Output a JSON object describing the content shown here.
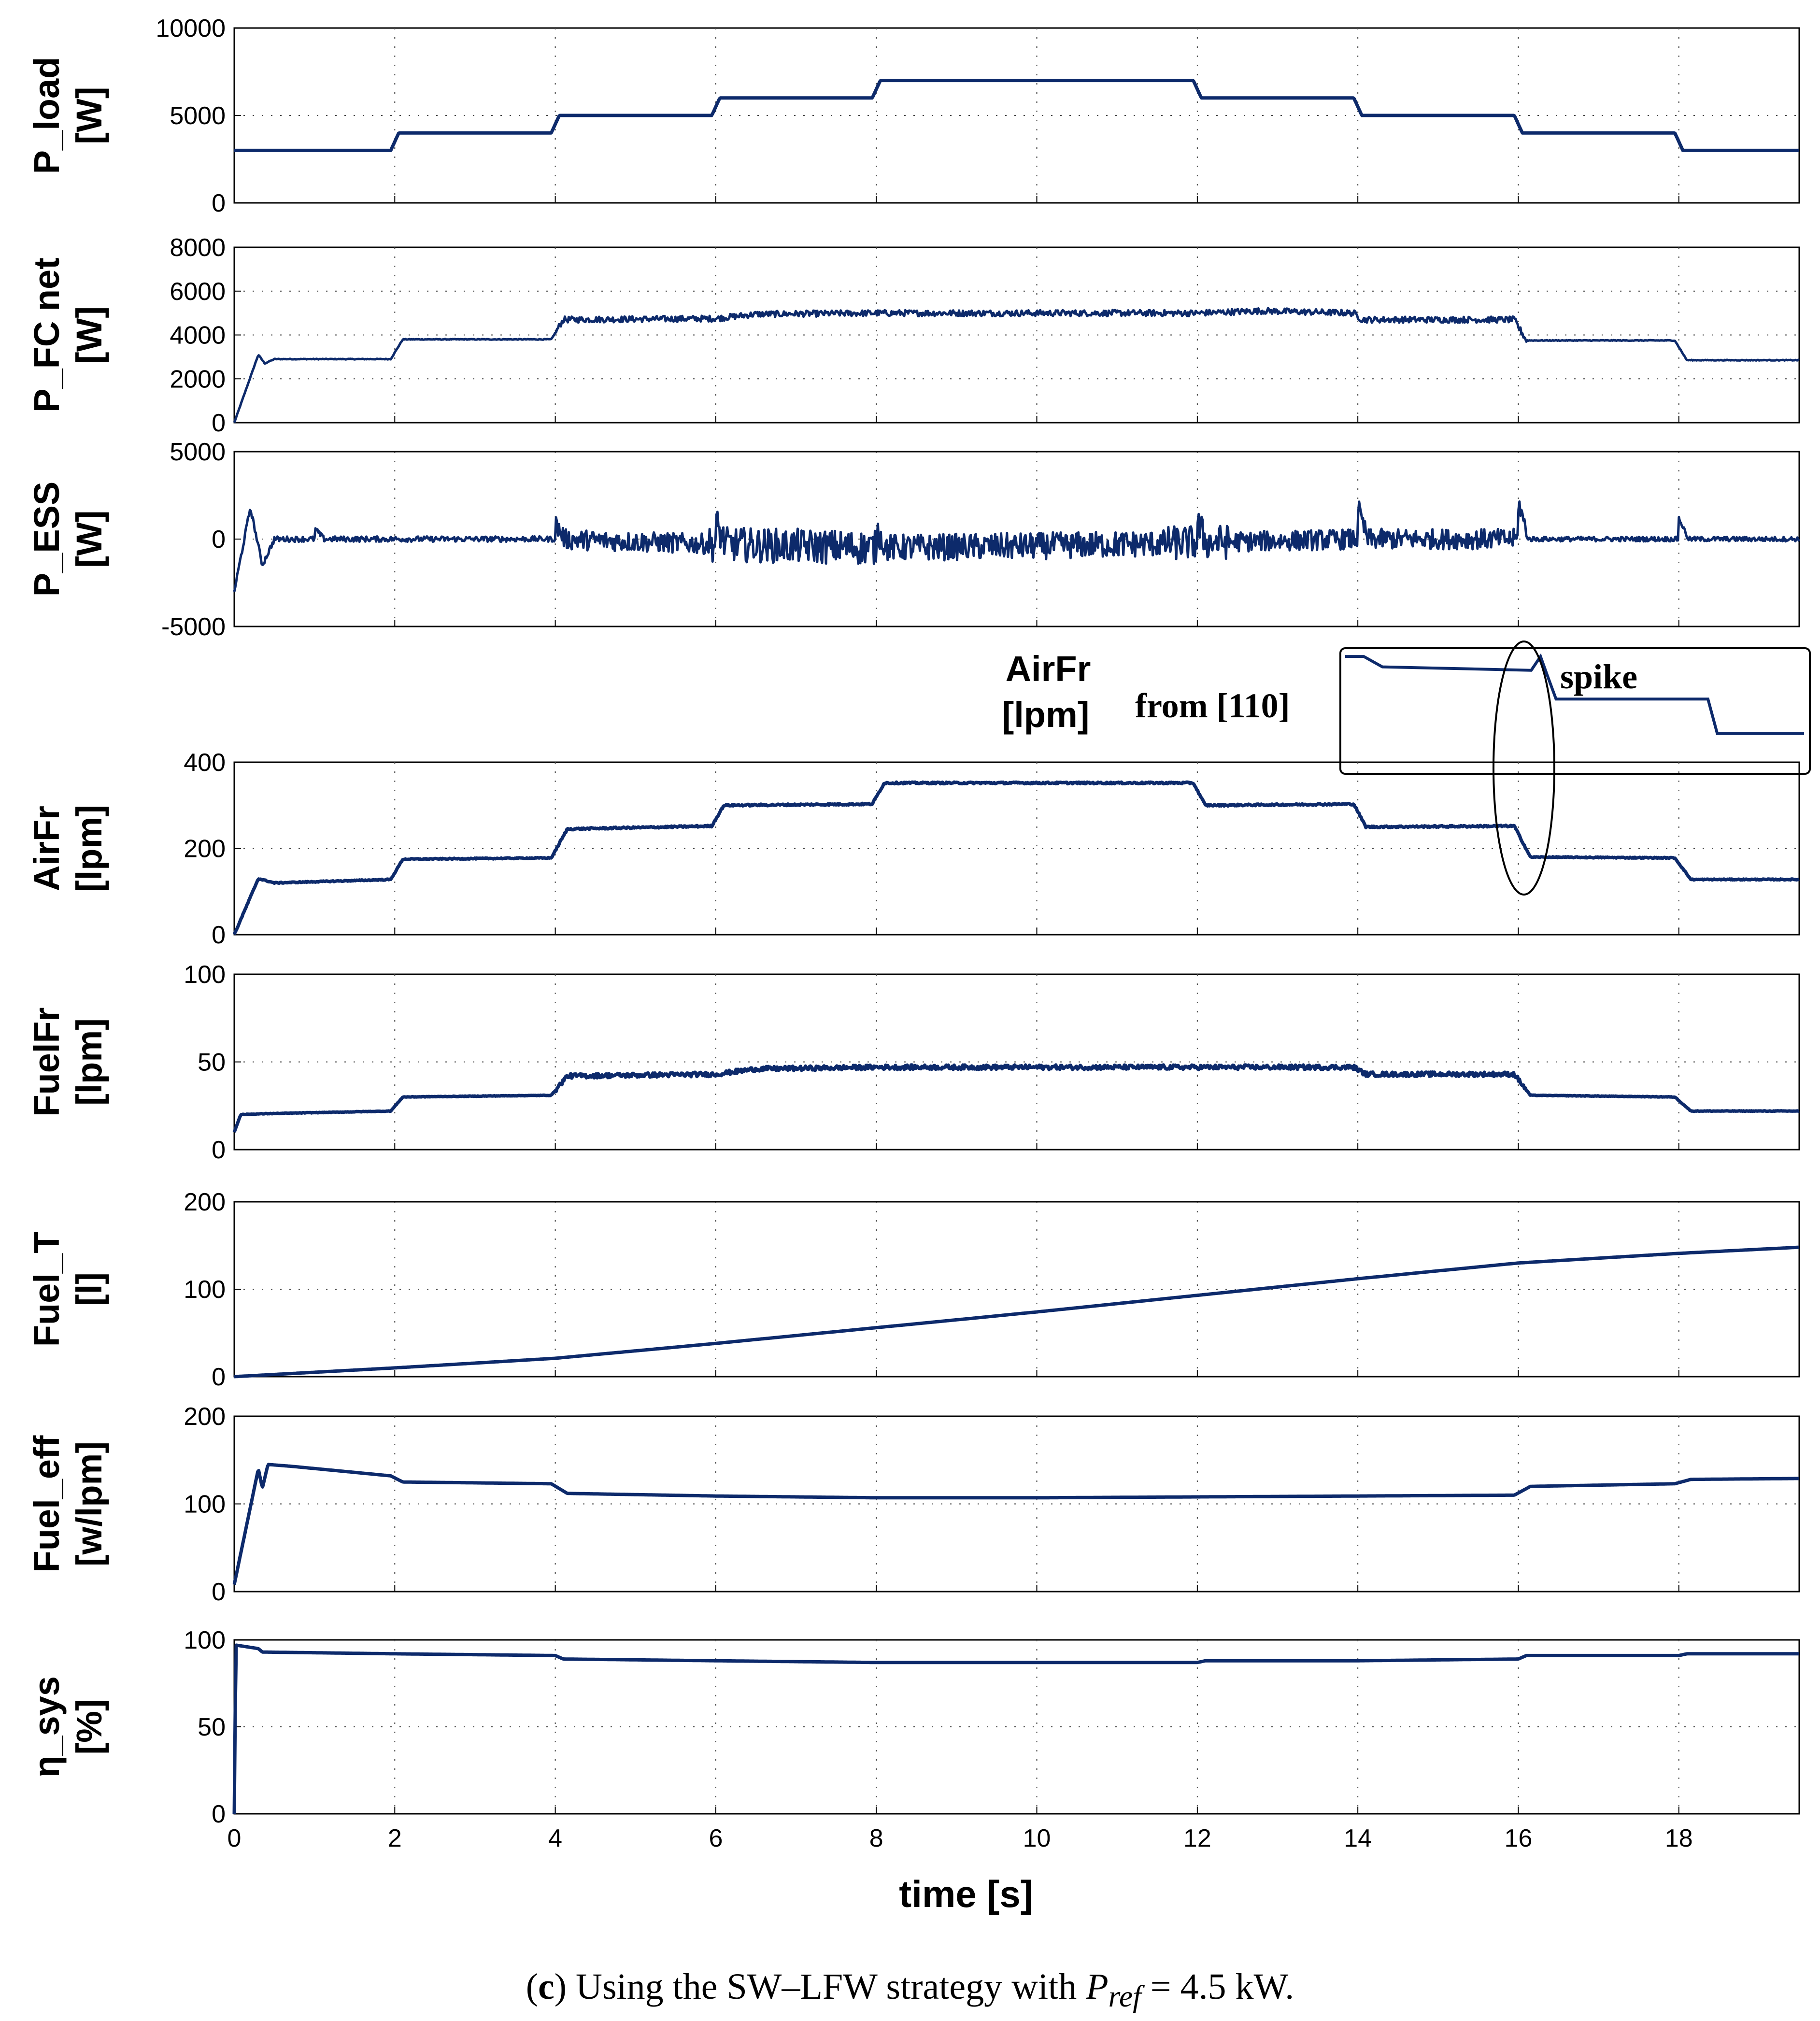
{
  "chart_data": {
    "type": "line",
    "layout": "stacked-subplots",
    "xlabel": "time [s]",
    "xlim": [
      0,
      19.5
    ],
    "xticks": [
      0,
      2,
      4,
      6,
      8,
      10,
      12,
      14,
      16,
      18
    ],
    "grid": true,
    "line_color": "#0d2a6b",
    "subplots": [
      {
        "id": "p_load",
        "ylabel": [
          "P_load",
          "[W]"
        ],
        "ylim": [
          0,
          10000
        ],
        "yticks": [
          0,
          5000,
          10000
        ],
        "noise": 0,
        "series": [
          [
            0,
            3000
          ],
          [
            1.95,
            3000
          ],
          [
            2.05,
            4000
          ],
          [
            3.95,
            4000
          ],
          [
            4.05,
            5000
          ],
          [
            5.95,
            5000
          ],
          [
            6.05,
            6000
          ],
          [
            7.95,
            6000
          ],
          [
            8.05,
            7000
          ],
          [
            11.95,
            7000
          ],
          [
            12.05,
            6000
          ],
          [
            13.95,
            6000
          ],
          [
            14.05,
            5000
          ],
          [
            15.95,
            5000
          ],
          [
            16.05,
            4000
          ],
          [
            17.95,
            4000
          ],
          [
            18.05,
            3000
          ],
          [
            19.5,
            3000
          ]
        ]
      },
      {
        "id": "p_fc_net",
        "ylabel": [
          "P_FC net",
          "[W]"
        ],
        "ylim": [
          0,
          8000
        ],
        "yticks": [
          0,
          2000,
          4000,
          6000,
          8000
        ],
        "noise": 140,
        "series": [
          [
            0,
            0
          ],
          [
            0.3,
            3100
          ],
          [
            0.38,
            2700
          ],
          [
            0.5,
            2900
          ],
          [
            1.95,
            2900
          ],
          [
            2.1,
            3800
          ],
          [
            3.95,
            3800
          ],
          [
            4.1,
            4700
          ],
          [
            6,
            4750
          ],
          [
            6.5,
            4950
          ],
          [
            8,
            5000
          ],
          [
            10,
            5000
          ],
          [
            12,
            5000
          ],
          [
            12.8,
            5100
          ],
          [
            13.95,
            5000
          ],
          [
            14.05,
            4700
          ],
          [
            15.95,
            4700
          ],
          [
            16.1,
            3750
          ],
          [
            17.95,
            3750
          ],
          [
            18.1,
            2850
          ],
          [
            19.5,
            2850
          ]
        ]
      },
      {
        "id": "p_ess",
        "ylabel": [
          "P_ESS",
          "[W]"
        ],
        "ylim": [
          -5000,
          5000
        ],
        "yticks": [
          -5000,
          0,
          5000
        ],
        "noise": 450,
        "series": [
          [
            0,
            -3000
          ],
          [
            0.2,
            1800
          ],
          [
            0.35,
            -1500
          ],
          [
            0.5,
            0
          ],
          [
            4,
            0
          ],
          [
            6,
            -300
          ],
          [
            8,
            -500
          ],
          [
            10,
            -400
          ],
          [
            12,
            -200
          ],
          [
            14,
            0
          ],
          [
            19.5,
            0
          ]
        ]
      },
      {
        "id": "airfr",
        "ylabel": [
          "AirFr",
          "[lpm]"
        ],
        "ylim": [
          0,
          400
        ],
        "yticks": [
          0,
          200,
          400
        ],
        "noise": 2,
        "series": [
          [
            0,
            0
          ],
          [
            0.3,
            130
          ],
          [
            0.5,
            120
          ],
          [
            1.95,
            128
          ],
          [
            2.1,
            175
          ],
          [
            3.95,
            178
          ],
          [
            4.15,
            245
          ],
          [
            5.95,
            252
          ],
          [
            6.1,
            300
          ],
          [
            7.95,
            303
          ],
          [
            8.1,
            352
          ],
          [
            11.95,
            352
          ],
          [
            12.1,
            300
          ],
          [
            13.95,
            303
          ],
          [
            14.1,
            250
          ],
          [
            15.95,
            252
          ],
          [
            16.15,
            180
          ],
          [
            17.95,
            178
          ],
          [
            18.15,
            128
          ],
          [
            19.5,
            128
          ]
        ]
      },
      {
        "id": "fuelfr",
        "ylabel": [
          "FuelFr",
          "[lpm]"
        ],
        "ylim": [
          0,
          100
        ],
        "yticks": [
          0,
          50,
          100
        ],
        "noise": 1.3,
        "series": [
          [
            0,
            10
          ],
          [
            0.08,
            20
          ],
          [
            0.4,
            20.5
          ],
          [
            1.95,
            22
          ],
          [
            2.1,
            30
          ],
          [
            3.95,
            31
          ],
          [
            4.15,
            42
          ],
          [
            6,
            43
          ],
          [
            6.5,
            46
          ],
          [
            8,
            47
          ],
          [
            12,
            47
          ],
          [
            13.95,
            47
          ],
          [
            14.1,
            43
          ],
          [
            15.95,
            43
          ],
          [
            16.15,
            31
          ],
          [
            17.95,
            30
          ],
          [
            18.15,
            22
          ],
          [
            19.5,
            22
          ]
        ]
      },
      {
        "id": "fuel_t",
        "ylabel": [
          "Fuel_T",
          "[l]"
        ],
        "ylim": [
          0,
          200
        ],
        "yticks": [
          0,
          100,
          200
        ],
        "noise": 0,
        "series": [
          [
            0,
            0
          ],
          [
            2,
            10
          ],
          [
            4,
            21
          ],
          [
            6,
            38
          ],
          [
            8,
            56
          ],
          [
            10,
            74
          ],
          [
            12,
            93
          ],
          [
            14,
            112
          ],
          [
            16,
            130
          ],
          [
            18,
            141
          ],
          [
            19.5,
            148
          ]
        ]
      },
      {
        "id": "fuel_eff",
        "ylabel": [
          "Fuel_eff",
          "[w/lpm]"
        ],
        "ylim": [
          0,
          200
        ],
        "yticks": [
          0,
          100,
          200
        ],
        "noise": 0,
        "series": [
          [
            0,
            8
          ],
          [
            0.3,
            140
          ],
          [
            0.35,
            118
          ],
          [
            0.42,
            145
          ],
          [
            0.7,
            143
          ],
          [
            1.95,
            132
          ],
          [
            2.1,
            125
          ],
          [
            3.95,
            123
          ],
          [
            4.15,
            112
          ],
          [
            6,
            109
          ],
          [
            8,
            107
          ],
          [
            10,
            107
          ],
          [
            12,
            108
          ],
          [
            14,
            109
          ],
          [
            15.95,
            110
          ],
          [
            16.15,
            120
          ],
          [
            17.95,
            123
          ],
          [
            18.15,
            128
          ],
          [
            19.5,
            129
          ]
        ]
      },
      {
        "id": "eta_sys",
        "ylabel": [
          "η_sys",
          "[%]"
        ],
        "ylim": [
          0,
          100
        ],
        "yticks": [
          0,
          50,
          100
        ],
        "noise": 0,
        "series": [
          [
            0,
            0
          ],
          [
            0.02,
            97
          ],
          [
            0.3,
            95
          ],
          [
            0.35,
            93
          ],
          [
            2,
            92
          ],
          [
            4,
            91
          ],
          [
            4.1,
            89
          ],
          [
            6,
            88
          ],
          [
            8,
            87
          ],
          [
            12,
            87
          ],
          [
            12.1,
            88
          ],
          [
            14,
            88
          ],
          [
            16,
            89
          ],
          [
            16.1,
            91
          ],
          [
            18,
            91
          ],
          [
            18.1,
            92
          ],
          [
            19.5,
            92
          ]
        ]
      }
    ],
    "inset": {
      "label": [
        "AirFr",
        "[lpm]"
      ],
      "source_label": "from [110]",
      "annotation": "spike",
      "description_series": [
        [
          0,
          0.97
        ],
        [
          0.06,
          0.97
        ],
        [
          0.12,
          0.88
        ],
        [
          0.6,
          0.85
        ],
        [
          0.63,
          0.97
        ],
        [
          0.65,
          0.82
        ],
        [
          0.68,
          0.6
        ],
        [
          1,
          0.6
        ],
        [
          1.17,
          0.6
        ],
        [
          1.2,
          0.3
        ],
        [
          1.48,
          0.3
        ]
      ]
    }
  },
  "caption": {
    "prefix": "(",
    "letter": "c",
    "text": ") Using the SW–LFW strategy with ",
    "symbol": "P",
    "subscript": "ref",
    "value": " = 4.5 kW."
  }
}
